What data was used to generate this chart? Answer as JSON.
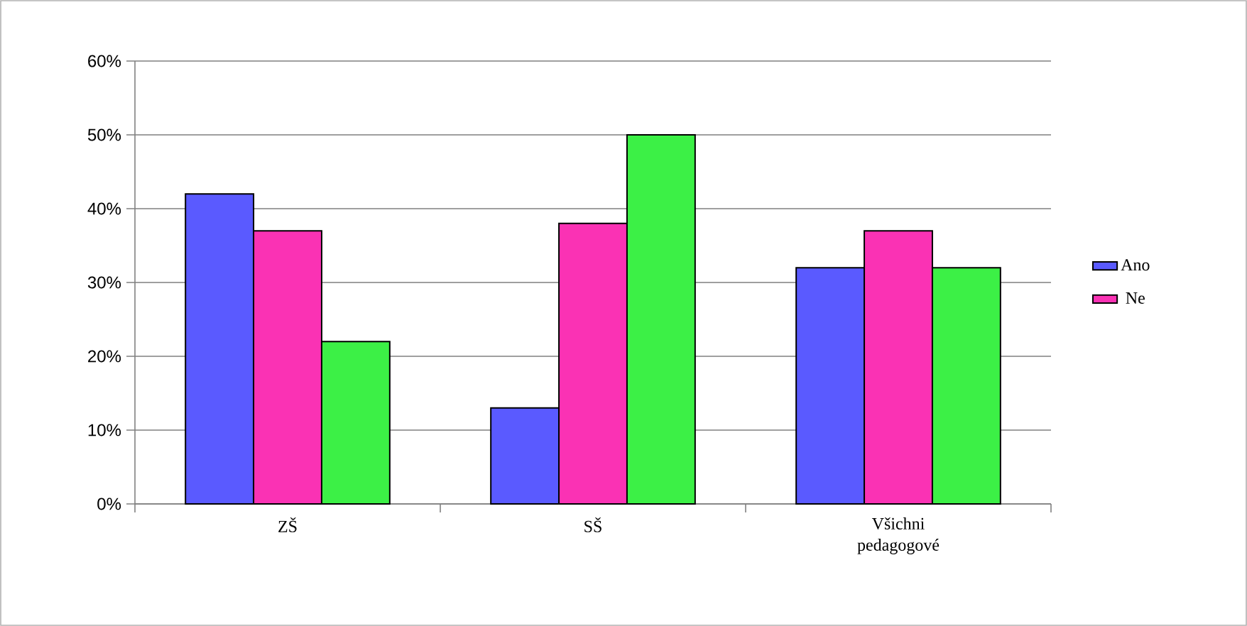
{
  "chart_data": {
    "type": "bar",
    "categories": [
      "ZŠ",
      "SŠ",
      "Všichni pedagogové"
    ],
    "series": [
      {
        "name": "Ano",
        "color": "#5a5aff",
        "values": [
          42,
          13,
          32
        ]
      },
      {
        "name": "Ne",
        "color": "#fa32b4",
        "values": [
          37,
          38,
          37
        ]
      },
      {
        "color": "#3cf046",
        "values": [
          22,
          50,
          32
        ]
      }
    ],
    "ylim": [
      0,
      60
    ],
    "yticks": [
      {
        "value": 0,
        "label": "0%"
      },
      {
        "value": 10,
        "label": "10%"
      },
      {
        "value": 20,
        "label": "20%"
      },
      {
        "value": 30,
        "label": "30%"
      },
      {
        "value": 40,
        "label": "40%"
      },
      {
        "value": 50,
        "label": "50%"
      },
      {
        "value": 60,
        "label": "60%"
      }
    ],
    "grid": "y",
    "legend": "right"
  }
}
